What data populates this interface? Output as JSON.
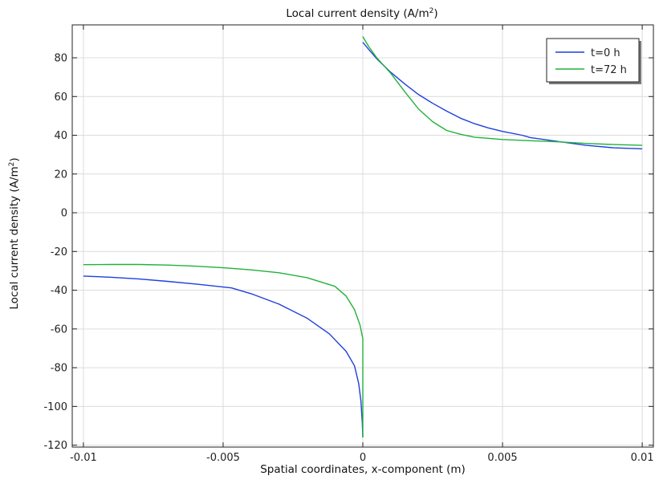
{
  "chart_data": {
    "type": "line",
    "title": "Local current density (A/m",
    "title_sup": "2",
    "title_close": ")",
    "xlabel": "Spatial coordinates, x-component (m)",
    "ylabel": "Local current density (A/m",
    "ylabel_sup": "2",
    "ylabel_close": ")",
    "xlim": [
      -0.0104,
      0.0104
    ],
    "ylim": [
      -121,
      97
    ],
    "x_ticks": [
      -0.01,
      -0.005,
      0,
      0.005,
      0.01
    ],
    "x_tick_labels": [
      "-0.01",
      "-0.005",
      "0",
      "0.005",
      "0.01"
    ],
    "y_ticks": [
      -120,
      -100,
      -80,
      -60,
      -40,
      -20,
      0,
      20,
      40,
      60,
      80
    ],
    "y_tick_labels": [
      "-120",
      "-100",
      "-80",
      "-60",
      "-40",
      "-20",
      "0",
      "20",
      "40",
      "60",
      "80"
    ],
    "grid": true,
    "legend_position": "top-right",
    "series": [
      {
        "name": "t=0 h",
        "color": "#1f3fdb",
        "segments": [
          [
            [
              -0.01,
              -32.7
            ],
            [
              -0.009,
              -33.3
            ],
            [
              -0.008,
              -34.2
            ],
            [
              -0.007,
              -35.4
            ],
            [
              -0.006,
              -36.8
            ],
            [
              -0.0047,
              -38.8
            ],
            [
              -0.004,
              -41.8
            ],
            [
              -0.003,
              -47.2
            ],
            [
              -0.002,
              -54.4
            ],
            [
              -0.0012,
              -62.5
            ],
            [
              -0.0006,
              -71.5
            ],
            [
              -0.0003,
              -79
            ],
            [
              -0.00015,
              -88
            ],
            [
              -7e-05,
              -97
            ],
            [
              -2e-05,
              -108
            ],
            [
              0,
              -116
            ]
          ],
          [
            [
              0,
              88
            ],
            [
              0.0002,
              84.5
            ],
            [
              0.0005,
              79.5
            ],
            [
              0.001,
              72.5
            ],
            [
              0.0015,
              66.5
            ],
            [
              0.002,
              61
            ],
            [
              0.0025,
              56.5
            ],
            [
              0.003,
              52.5
            ],
            [
              0.0035,
              48.8
            ],
            [
              0.004,
              46
            ],
            [
              0.0045,
              43.8
            ],
            [
              0.005,
              42
            ],
            [
              0.0057,
              40
            ],
            [
              0.006,
              38.8
            ],
            [
              0.007,
              36.8
            ],
            [
              0.008,
              34.8
            ],
            [
              0.009,
              33.5
            ],
            [
              0.01,
              33
            ]
          ]
        ]
      },
      {
        "name": "t=72 h",
        "color": "#21b23a",
        "segments": [
          [
            [
              -0.01,
              -26.8
            ],
            [
              -0.009,
              -26.7
            ],
            [
              -0.008,
              -26.7
            ],
            [
              -0.007,
              -27
            ],
            [
              -0.006,
              -27.6
            ],
            [
              -0.005,
              -28.4
            ],
            [
              -0.004,
              -29.5
            ],
            [
              -0.003,
              -31
            ],
            [
              -0.002,
              -33.5
            ],
            [
              -0.001,
              -38
            ],
            [
              -0.0006,
              -43
            ],
            [
              -0.0003,
              -50
            ],
            [
              -0.0001,
              -58
            ],
            [
              0,
              -65
            ],
            [
              0,
              -116
            ]
          ],
          [
            [
              0,
              91
            ],
            [
              0.0002,
              86
            ],
            [
              0.0005,
              80
            ],
            [
              0.001,
              72
            ],
            [
              0.0015,
              62.5
            ],
            [
              0.002,
              53.5
            ],
            [
              0.0025,
              47
            ],
            [
              0.003,
              42.5
            ],
            [
              0.0035,
              40.5
            ],
            [
              0.004,
              39
            ],
            [
              0.005,
              37.8
            ],
            [
              0.006,
              37.2
            ],
            [
              0.007,
              36.6
            ],
            [
              0.008,
              35.8
            ],
            [
              0.009,
              35.2
            ],
            [
              0.01,
              34.8
            ]
          ]
        ]
      }
    ]
  }
}
